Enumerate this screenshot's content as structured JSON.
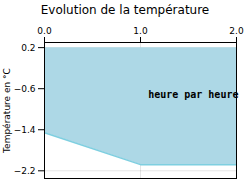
{
  "chart_data": {
    "type": "area",
    "title": "Evolution de la température",
    "ylabel": "Température en °C",
    "x": [
      0,
      1.0,
      2.0
    ],
    "series": [
      {
        "type": "area",
        "color": "#add8e6",
        "values": [
          -1.46,
          -2.08,
          -2.08
        ],
        "fill_to": 0.2
      },
      {
        "type": "line",
        "color": "#7ecfe0",
        "values": [
          -1.46,
          -2.08,
          -2.08
        ]
      }
    ],
    "annotations": [
      {
        "text": "heure par heure",
        "x": 1.55,
        "y": -0.72
      }
    ],
    "xlim": [
      0,
      2
    ],
    "xticks": [
      0,
      1,
      2
    ],
    "ylim": [
      -2.35,
      0.3
    ],
    "yticks": [
      0.2,
      -0.6,
      -1.4,
      -2.2
    ],
    "grid": true
  }
}
